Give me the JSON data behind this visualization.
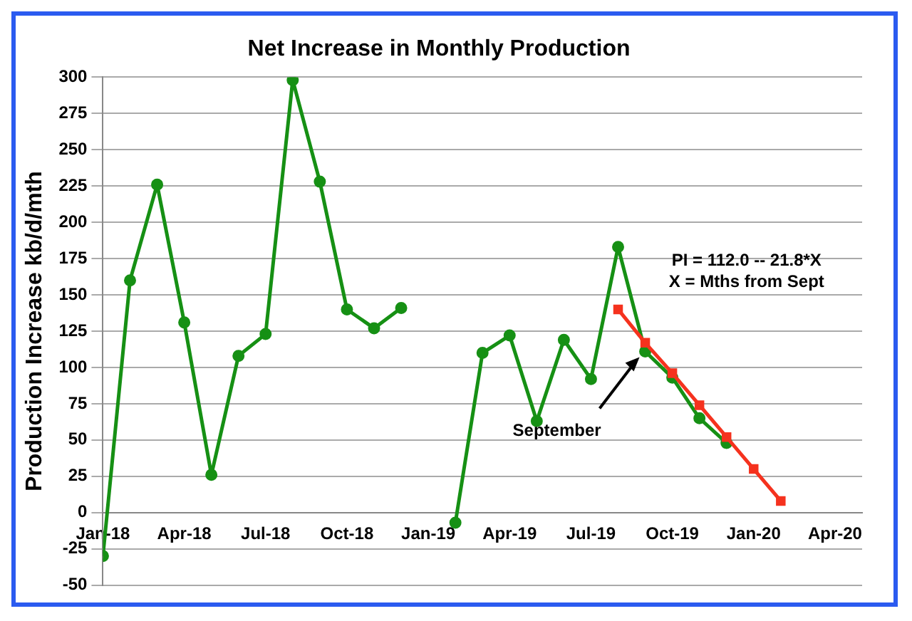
{
  "chart_data": {
    "type": "line",
    "title": "Net Increase in Monthly Production",
    "ylabel": "Production Increase kb/d/mth",
    "x": [
      "2018-01",
      "2018-02",
      "2018-03",
      "2018-04",
      "2018-05",
      "2018-06",
      "2018-07",
      "2018-08",
      "2018-09",
      "2018-10",
      "2018-11",
      "2018-12",
      "2019-01",
      "2019-02",
      "2019-03",
      "2019-04",
      "2019-05",
      "2019-06",
      "2019-07",
      "2019-08",
      "2019-09",
      "2019-10",
      "2019-11",
      "2019-12"
    ],
    "series": [
      {
        "color": "#169014",
        "marker": "circle",
        "values": [
          -30,
          160,
          226,
          131,
          26,
          108,
          123,
          298,
          228,
          140,
          127,
          141,
          null,
          -7,
          110,
          122,
          63,
          119,
          92,
          183,
          111,
          93,
          65,
          48
        ]
      },
      {
        "color": "#f5321e",
        "marker": "square",
        "x": [
          "2019-08",
          "2019-09",
          "2019-10",
          "2019-11",
          "2019-12",
          "2020-01",
          "2020-02"
        ],
        "values": [
          140,
          117,
          96,
          74,
          52,
          30,
          8
        ]
      }
    ],
    "xlim": [
      "2018-01",
      "2020-05"
    ],
    "xticks": [
      {
        "value": "2018-01",
        "label": "Jan-18"
      },
      {
        "value": "2018-04",
        "label": "Apr-18"
      },
      {
        "value": "2018-07",
        "label": "Jul-18"
      },
      {
        "value": "2018-10",
        "label": "Oct-18"
      },
      {
        "value": "2019-01",
        "label": "Jan-19"
      },
      {
        "value": "2019-04",
        "label": "Apr-19"
      },
      {
        "value": "2019-07",
        "label": "Jul-19"
      },
      {
        "value": "2019-10",
        "label": "Oct-19"
      },
      {
        "value": "2020-01",
        "label": "Jan-20"
      },
      {
        "value": "2020-04",
        "label": "Apr-20"
      }
    ],
    "ylim": [
      -50,
      300
    ],
    "yticks": [
      -50,
      -25,
      0,
      25,
      50,
      75,
      100,
      125,
      150,
      175,
      200,
      225,
      250,
      275,
      300
    ],
    "grid": "y",
    "legend": false,
    "annotations": [
      "PI = 112.0 -- 21.8*X\nX = Mths from Sept",
      {
        "text": "September",
        "x": "2019-09",
        "y": 111
      }
    ]
  }
}
